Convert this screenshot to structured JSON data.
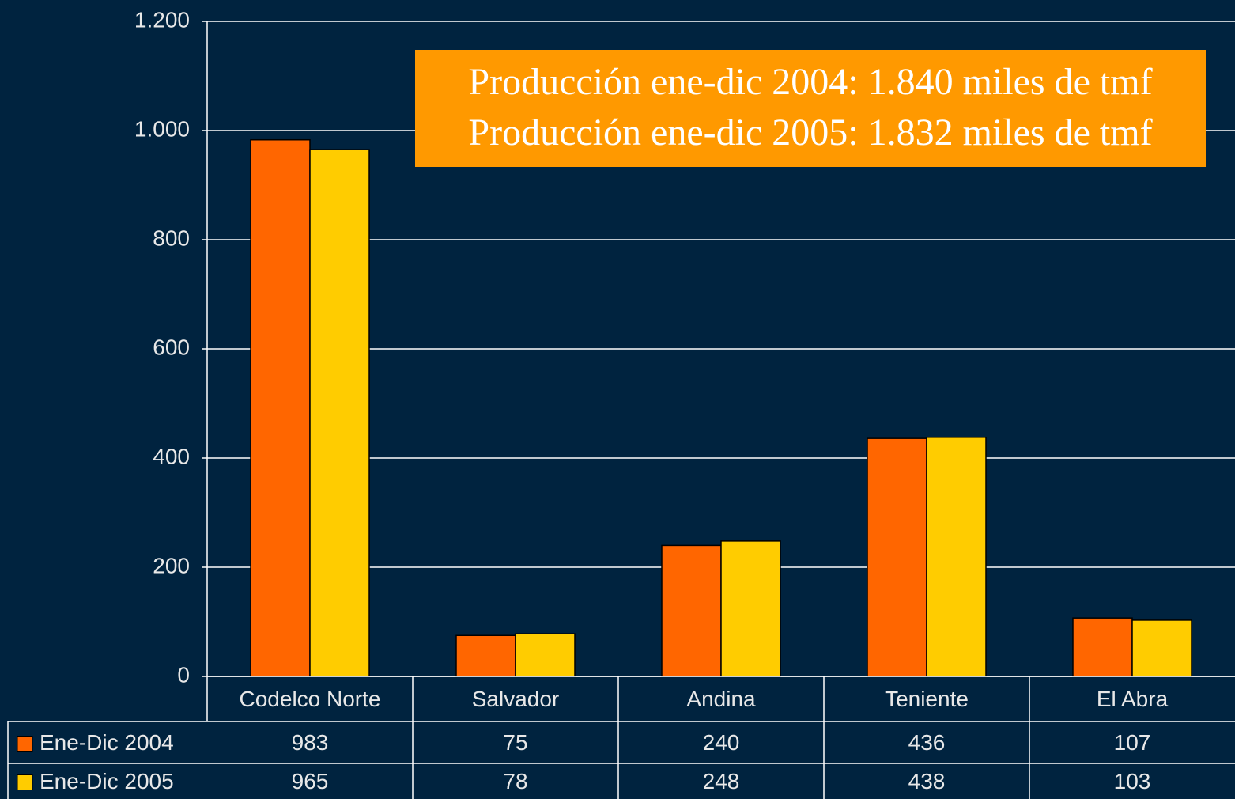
{
  "chart_data": {
    "type": "bar",
    "annotations": [
      "Producción ene-dic 2004: 1.840 miles de tmf",
      "Producción ene-dic 2005: 1.832 miles de tmf"
    ],
    "categories": [
      "Codelco Norte",
      "Salvador",
      "Andina",
      "Teniente",
      "El Abra"
    ],
    "series": [
      {
        "name": "Ene-Dic 2004",
        "color": "#ff6600",
        "values": [
          983,
          75,
          240,
          436,
          107
        ]
      },
      {
        "name": "Ene-Dic 2005",
        "color": "#ffcc00",
        "values": [
          965,
          78,
          248,
          438,
          103
        ]
      }
    ],
    "ylim": [
      0,
      1200
    ],
    "yticks": [
      0,
      200,
      400,
      600,
      800,
      {
        "value": 1000,
        "label": "1.000"
      },
      {
        "value": 1200,
        "label": "1.200"
      }
    ],
    "grid": true
  }
}
